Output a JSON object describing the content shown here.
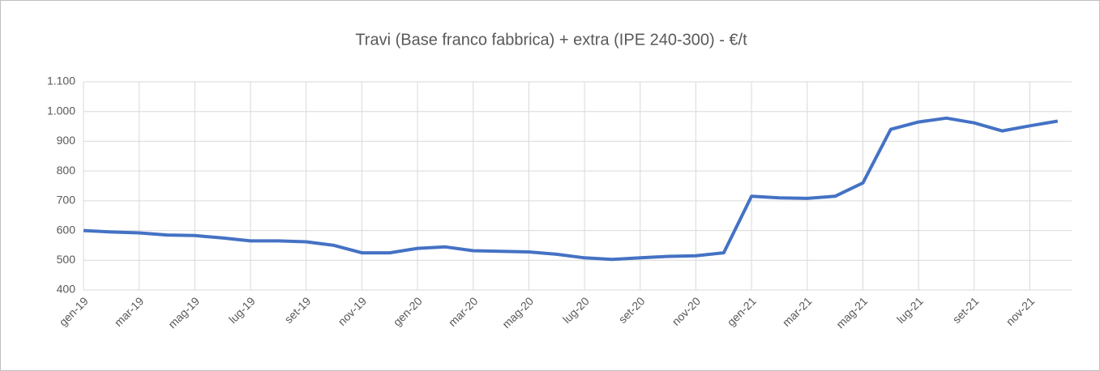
{
  "chart_data": {
    "type": "line",
    "title": "Travi (Base franco fabbrica) + extra (IPE 240-300) - €/t",
    "categories": [
      "gen-19",
      null,
      "mar-19",
      null,
      "mag-19",
      null,
      "lug-19",
      null,
      "set-19",
      null,
      "nov-19",
      null,
      "gen-20",
      null,
      "mar-20",
      null,
      "mag-20",
      null,
      "lug-20",
      null,
      "set-20",
      null,
      "nov-20",
      null,
      "gen-21",
      null,
      "mar-21",
      null,
      "mag-21",
      null,
      "lug-21",
      null,
      "set-21",
      null,
      "nov-21",
      null
    ],
    "series": [
      {
        "name": "Travi",
        "color": "#4472c4",
        "values": [
          600,
          595,
          592,
          585,
          583,
          575,
          565,
          565,
          562,
          550,
          525,
          525,
          540,
          545,
          532,
          530,
          528,
          520,
          508,
          503,
          508,
          513,
          515,
          525,
          715,
          710,
          708,
          715,
          760,
          940,
          965,
          978,
          962,
          935,
          952,
          968
        ]
      }
    ],
    "ylim": [
      400,
      1100
    ],
    "yticks": [
      400,
      500,
      600,
      700,
      800,
      900,
      {
        "value": 1000,
        "label": "1.000"
      },
      {
        "value": 1100,
        "label": "1.100"
      }
    ],
    "grid": true
  }
}
